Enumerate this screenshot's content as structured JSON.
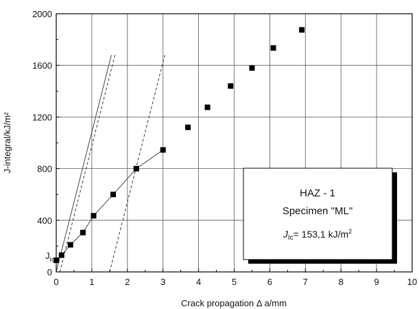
{
  "chart_data": {
    "type": "scatter",
    "xlabel": "Crack propagation  Δ a/mm",
    "ylabel": "J-integral/kJ/m²",
    "xlim": [
      0,
      10
    ],
    "ylim": [
      0,
      2000
    ],
    "xticks": [
      0,
      1,
      2,
      3,
      4,
      5,
      6,
      7,
      8,
      9,
      10
    ],
    "yticks": [
      0,
      400,
      800,
      1200,
      1600,
      2000
    ],
    "grid": true,
    "series": [
      {
        "marker": "square",
        "color": "#000000",
        "x": [
          0.0,
          0.15,
          0.4,
          0.75,
          1.05,
          1.6,
          2.25,
          3.0,
          3.7,
          4.25,
          4.9,
          5.5,
          6.1,
          6.9
        ],
        "y": [
          90,
          130,
          210,
          305,
          435,
          600,
          800,
          945,
          1120,
          1275,
          1440,
          1580,
          1735,
          1875
        ]
      }
    ],
    "lines": [
      {
        "name": "resistance-curve",
        "style": "solid",
        "x": [
          0.0,
          0.15,
          0.4,
          0.75,
          1.05,
          1.6,
          2.25,
          3.0
        ],
        "y": [
          90,
          130,
          210,
          305,
          435,
          600,
          800,
          945
        ]
      },
      {
        "name": "blunting-line",
        "style": "solid",
        "x": [
          0.0,
          1.55
        ],
        "y": [
          0,
          1680
        ]
      },
      {
        "name": "offset-line-left",
        "style": "dashed",
        "x": [
          0.1,
          1.65
        ],
        "y": [
          0,
          1680
        ]
      },
      {
        "name": "offset-line-right",
        "style": "dashed",
        "x": [
          1.5,
          3.05
        ],
        "y": [
          0,
          1680
        ]
      }
    ],
    "annotations": {
      "jic_label": "J",
      "jic_subscript": "Ic"
    },
    "legend_box": {
      "position": "bottom-right",
      "line1": "HAZ - 1",
      "line2": "Specimen \"ML\"",
      "jic_symbol": "J",
      "jic_subscript": "Ic",
      "jic_value": "= 153,1 kJ/m",
      "jic_exponent": "2"
    }
  }
}
